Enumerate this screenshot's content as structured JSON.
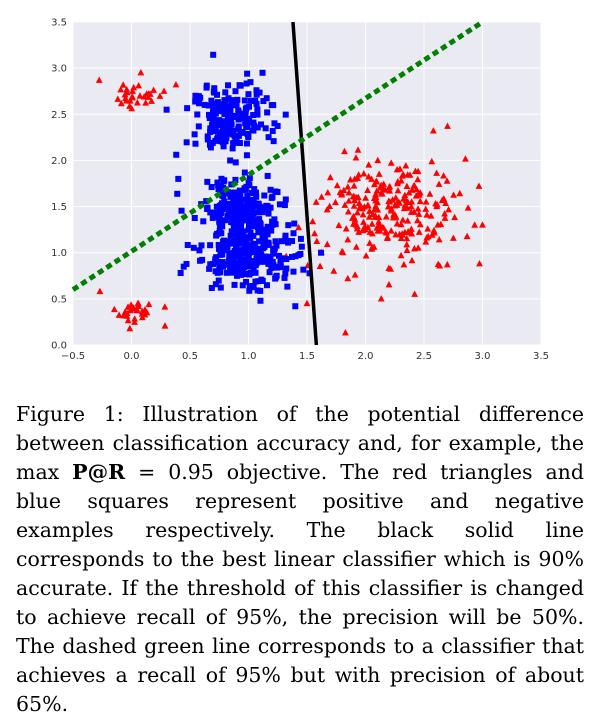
{
  "colors": {
    "plot_background": "#eaeaf2",
    "grid": "#ffffff",
    "positive": "#ff0000",
    "negative": "#0000ff",
    "solid_line": "#000000",
    "dashed_line": "#008000"
  },
  "chart_data": {
    "type": "scatter",
    "xlim": [
      -0.5,
      3.5
    ],
    "ylim": [
      0.0,
      3.5
    ],
    "x_ticks": [
      -0.5,
      0.0,
      0.5,
      1.0,
      1.5,
      2.0,
      2.5,
      3.0,
      3.5
    ],
    "y_ticks": [
      0.0,
      0.5,
      1.0,
      1.5,
      2.0,
      2.5,
      3.0,
      3.5
    ],
    "x_tick_labels": [
      "−0.5",
      "0.0",
      "0.5",
      "1.0",
      "1.5",
      "2.0",
      "2.5",
      "3.0",
      "3.5"
    ],
    "y_tick_labels": [
      "0.0",
      "0.5",
      "1.0",
      "1.5",
      "2.0",
      "2.5",
      "3.0",
      "3.5"
    ],
    "grid": true,
    "legend": "none",
    "series": [
      {
        "marker": "triangle",
        "color": "#ff0000",
        "clusters": [
          {
            "center": [
              0.05,
              2.7
            ],
            "spread": [
              0.1,
              0.08
            ],
            "count": 30
          },
          {
            "center": [
              0.05,
              0.35
            ],
            "spread": [
              0.1,
              0.07
            ],
            "count": 30
          },
          {
            "center": [
              2.2,
              1.45
            ],
            "spread": [
              0.3,
              0.28
            ],
            "count": 260
          }
        ],
        "points": [
          [
            0.38,
            2.82
          ],
          [
            0.08,
            2.95
          ],
          [
            -0.27,
            0.58
          ],
          [
            2.42,
            0.55
          ],
          [
            2.58,
            2.32
          ],
          [
            2.97,
            1.72
          ],
          [
            3.0,
            1.3
          ],
          [
            1.5,
            0.45
          ]
        ]
      },
      {
        "marker": "square",
        "color": "#0000ff",
        "clusters": [
          {
            "center": [
              0.85,
              2.45
            ],
            "spread": [
              0.18,
              0.2
            ],
            "count": 180
          },
          {
            "center": [
              0.95,
              1.45
            ],
            "spread": [
              0.16,
              0.18
            ],
            "count": 220
          },
          {
            "center": [
              1.0,
              0.95
            ],
            "spread": [
              0.2,
              0.18
            ],
            "count": 230
          }
        ],
        "points": [
          [
            0.3,
            2.55
          ],
          [
            0.42,
            0.78
          ],
          [
            0.4,
            1.8
          ],
          [
            1.62,
            1.0
          ],
          [
            1.4,
            0.42
          ],
          [
            1.12,
            2.95
          ]
        ]
      }
    ],
    "lines": [
      {
        "style": "solid",
        "color": "#000000",
        "points": [
          [
            1.38,
            3.5
          ],
          [
            1.58,
            0.0
          ]
        ]
      },
      {
        "style": "dashed",
        "color": "#008000",
        "points": [
          [
            -0.5,
            0.6
          ],
          [
            3.0,
            3.5
          ]
        ]
      }
    ]
  },
  "caption": {
    "part1": "Figure 1: Illustration of the potential difference between classification accuracy and, for example, the max ",
    "metric": "P@R",
    "part2": " = 0.95 objective. The red triangles and blue squares represent positive and negative examples respectively. The black solid line corresponds to the best linear classifier which is  90% accurate. If the threshold of this classifier is changed to achieve recall of 95%, the precision will be  50%. The dashed green line corresponds to a classifier that achieves a recall of 95% but with precision of about 65%."
  }
}
